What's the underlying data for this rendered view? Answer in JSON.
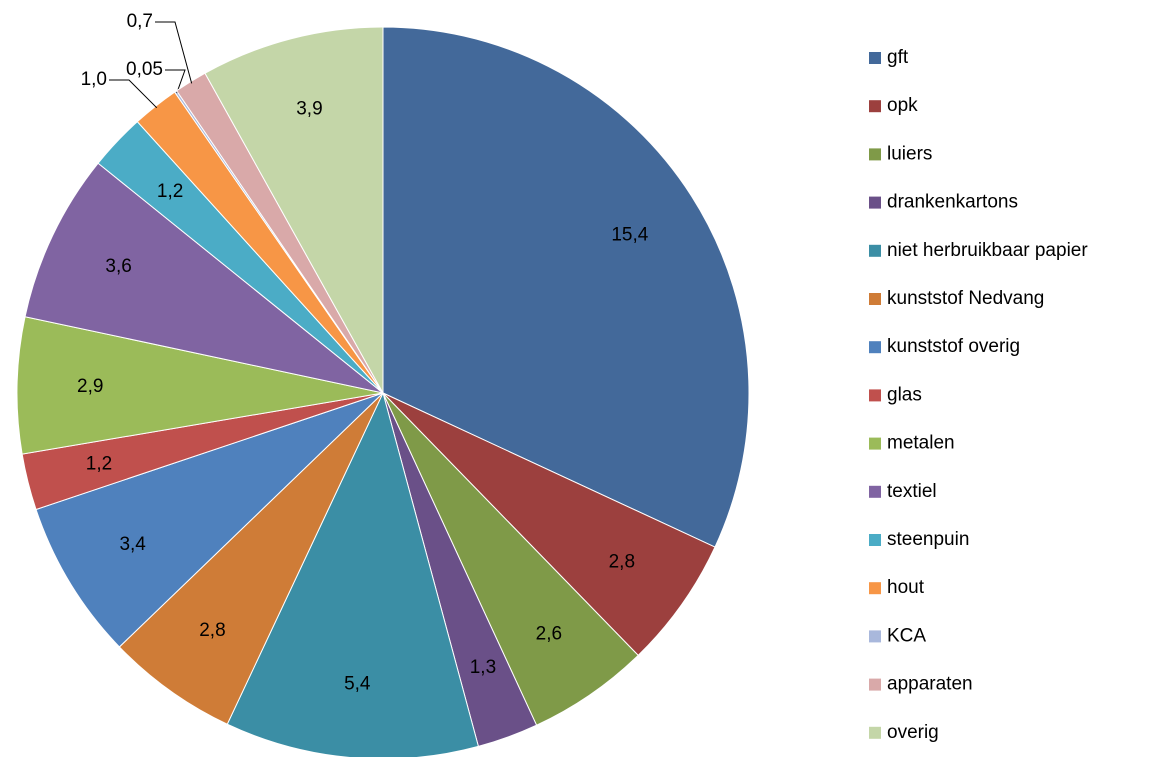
{
  "chart_data": {
    "type": "pie",
    "categories": [
      "gft",
      "opk",
      "luiers",
      "drankenkartons",
      "niet herbruikbaar papier",
      "kunststof Nedvang",
      "kunststof overig",
      "glas",
      "metalen",
      "textiel",
      "steenpuin",
      "hout",
      "KCA",
      "apparaten",
      "overig"
    ],
    "values": [
      15.4,
      2.8,
      2.6,
      1.3,
      5.4,
      2.8,
      3.4,
      1.2,
      2.9,
      3.6,
      1.2,
      1.0,
      0.05,
      0.7,
      3.9
    ],
    "value_labels": [
      "15,4",
      "2,8",
      "2,6",
      "1,3",
      "5,4",
      "2,8",
      "3,4",
      "1,2",
      "2,9",
      "3,6",
      "1,2",
      "1,0",
      "0,05",
      "0,7",
      "3,9"
    ],
    "colors": [
      "#43699a",
      "#9c403e",
      "#7f9a48",
      "#6a5088",
      "#3b8ea5",
      "#cf7c37",
      "#4f81bd",
      "#c0504d",
      "#9bbb59",
      "#8064a2",
      "#4bacc6",
      "#f79646",
      "#a9b8dc",
      "#d9a9a9",
      "#c4d6a8"
    ],
    "legend": "right"
  }
}
